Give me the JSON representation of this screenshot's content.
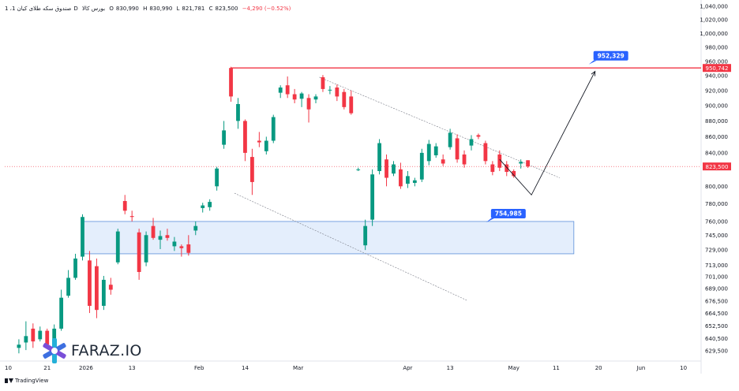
{
  "header": {
    "symbol": "1 ،صندوق سکه طلای کیان",
    "interval": "1D",
    "exchange": "بورس کالا",
    "open_label": "O",
    "open": "830,990",
    "high_label": "H",
    "high": "830,990",
    "low_label": "L",
    "low": "821,781",
    "close_label": "C",
    "close": "823,500",
    "change": "−4,290 (−0.52%)"
  },
  "footer": {
    "brand": "TradingView"
  },
  "logo": {
    "text": "FARAZ.IO"
  },
  "colors": {
    "up": "#089981",
    "down": "#f23645",
    "zone_fill": "#dbe8fb",
    "zone_border": "#5b8fd9",
    "resistance": "#f23645",
    "label_bg": "#2962ff",
    "channel": "#787b86"
  },
  "chart_data": {
    "type": "candlestick",
    "y_axis": {
      "scale": "log",
      "ticks": [
        "1,040,000",
        "1,020,000",
        "1,000,000",
        "980,000",
        "960,000",
        "940,000",
        "920,000",
        "900,000",
        "880,000",
        "860,000",
        "840,000",
        "800,000",
        "780,000",
        "760,000",
        "745,000",
        "729,000",
        "713,000",
        "701,000",
        "689,000",
        "676,500",
        "664,500",
        "652,500",
        "640,500",
        "629,500"
      ],
      "ylim": [
        620000,
        1045000
      ]
    },
    "x_axis": {
      "ticks": [
        {
          "label": "10",
          "day": 0
        },
        {
          "label": "21",
          "day": 11
        },
        {
          "label": "2026",
          "day": 22
        },
        {
          "label": "13",
          "day": 35
        },
        {
          "label": "Feb",
          "day": 54
        },
        {
          "label": "14",
          "day": 67
        },
        {
          "label": "Mar",
          "day": 82
        },
        {
          "label": "Apr",
          "day": 113
        },
        {
          "label": "13",
          "day": 125
        },
        {
          "label": "May",
          "day": 143
        },
        {
          "label": "11",
          "day": 155
        },
        {
          "label": "20",
          "day": 167
        },
        {
          "label": "Jun",
          "day": 179
        },
        {
          "label": "10",
          "day": 191
        }
      ],
      "xlim": [
        -1,
        196
      ]
    },
    "candles": [
      {
        "day": 3,
        "o": 632000,
        "h": 640000,
        "l": 627000,
        "c": 635000
      },
      {
        "day": 5,
        "o": 637000,
        "h": 657000,
        "l": 630000,
        "c": 643000
      },
      {
        "day": 7,
        "o": 650000,
        "h": 655000,
        "l": 632000,
        "c": 638000
      },
      {
        "day": 9,
        "o": 640000,
        "h": 652000,
        "l": 638000,
        "c": 648000
      },
      {
        "day": 11,
        "o": 648000,
        "h": 650000,
        "l": 632000,
        "c": 635000
      },
      {
        "day": 13,
        "o": 636000,
        "h": 654000,
        "l": 634000,
        "c": 650000
      },
      {
        "day": 15,
        "o": 650000,
        "h": 688000,
        "l": 648000,
        "c": 680000
      },
      {
        "day": 17,
        "o": 682000,
        "h": 708000,
        "l": 680000,
        "c": 700000
      },
      {
        "day": 19,
        "o": 700000,
        "h": 725000,
        "l": 698000,
        "c": 720000
      },
      {
        "day": 21,
        "o": 722000,
        "h": 768000,
        "l": 718000,
        "c": 765000
      },
      {
        "day": 23,
        "o": 718000,
        "h": 728000,
        "l": 665000,
        "c": 672000
      },
      {
        "day": 25,
        "o": 712000,
        "h": 720000,
        "l": 660000,
        "c": 668000
      },
      {
        "day": 27,
        "o": 672000,
        "h": 702000,
        "l": 668000,
        "c": 698000
      },
      {
        "day": 29,
        "o": 693000,
        "h": 700000,
        "l": 683000,
        "c": 688000
      },
      {
        "day": 31,
        "o": 716000,
        "h": 752000,
        "l": 714000,
        "c": 749000
      },
      {
        "day": 33,
        "o": 783000,
        "h": 790000,
        "l": 768000,
        "c": 772000
      },
      {
        "day": 35,
        "o": 766000,
        "h": 772000,
        "l": 760000,
        "c": 765000
      },
      {
        "day": 37,
        "o": 748000,
        "h": 752000,
        "l": 698000,
        "c": 706000
      },
      {
        "day": 39,
        "o": 716000,
        "h": 749000,
        "l": 712000,
        "c": 745000
      },
      {
        "day": 41,
        "o": 755000,
        "h": 764000,
        "l": 740000,
        "c": 742000
      },
      {
        "day": 43,
        "o": 740000,
        "h": 750000,
        "l": 730000,
        "c": 744000
      },
      {
        "day": 45,
        "o": 745000,
        "h": 752000,
        "l": 739000,
        "c": 742000
      },
      {
        "day": 47,
        "o": 733000,
        "h": 743000,
        "l": 728000,
        "c": 738000
      },
      {
        "day": 49,
        "o": 733000,
        "h": 735000,
        "l": 722000,
        "c": 731000
      },
      {
        "day": 51,
        "o": 735000,
        "h": 745000,
        "l": 723000,
        "c": 726000
      },
      {
        "day": 53,
        "o": 750000,
        "h": 760000,
        "l": 745000,
        "c": 755000
      },
      {
        "day": 55,
        "o": 775000,
        "h": 781000,
        "l": 770000,
        "c": 778000
      },
      {
        "day": 57,
        "o": 776000,
        "h": 785000,
        "l": 772000,
        "c": 782000
      },
      {
        "day": 59,
        "o": 800000,
        "h": 823000,
        "l": 795000,
        "c": 821000
      },
      {
        "day": 61,
        "o": 850000,
        "h": 880000,
        "l": 845000,
        "c": 868000
      },
      {
        "day": 63,
        "o": 950742,
        "h": 952329,
        "l": 905000,
        "c": 912000
      },
      {
        "day": 65,
        "o": 880000,
        "h": 910000,
        "l": 870000,
        "c": 902000
      },
      {
        "day": 67,
        "o": 880000,
        "h": 882000,
        "l": 830000,
        "c": 840000
      },
      {
        "day": 69,
        "o": 835000,
        "h": 845000,
        "l": 790000,
        "c": 805000
      },
      {
        "day": 71,
        "o": 855000,
        "h": 866000,
        "l": 847000,
        "c": 853000
      },
      {
        "day": 73,
        "o": 842000,
        "h": 860000,
        "l": 838000,
        "c": 855000
      },
      {
        "day": 75,
        "o": 855000,
        "h": 888000,
        "l": 852000,
        "c": 885000
      },
      {
        "day": 77,
        "o": 917000,
        "h": 927000,
        "l": 910000,
        "c": 924000
      },
      {
        "day": 79,
        "o": 927000,
        "h": 939000,
        "l": 910000,
        "c": 915000
      },
      {
        "day": 81,
        "o": 915000,
        "h": 922000,
        "l": 903000,
        "c": 908000
      },
      {
        "day": 83,
        "o": 909000,
        "h": 918000,
        "l": 898000,
        "c": 916000
      },
      {
        "day": 85,
        "o": 910000,
        "h": 915000,
        "l": 878000,
        "c": 895000
      },
      {
        "day": 87,
        "o": 908000,
        "h": 915000,
        "l": 903000,
        "c": 912000
      },
      {
        "day": 89,
        "o": 938000,
        "h": 941000,
        "l": 918000,
        "c": 922000
      },
      {
        "day": 91,
        "o": 920000,
        "h": 926000,
        "l": 915000,
        "c": 921000
      },
      {
        "day": 93,
        "o": 924000,
        "h": 928000,
        "l": 906000,
        "c": 912000
      },
      {
        "day": 95,
        "o": 918000,
        "h": 922000,
        "l": 895000,
        "c": 898000
      },
      {
        "day": 97,
        "o": 912000,
        "h": 920000,
        "l": 888000,
        "c": 890000
      },
      {
        "day": 99,
        "o": 820000,
        "h": 822000,
        "l": 818000,
        "c": 820000
      },
      {
        "day": 101,
        "o": 734000,
        "h": 762000,
        "l": 729000,
        "c": 755000
      },
      {
        "day": 103,
        "o": 762000,
        "h": 820000,
        "l": 755000,
        "c": 814000
      },
      {
        "day": 105,
        "o": 818000,
        "h": 857000,
        "l": 814000,
        "c": 852000
      },
      {
        "day": 107,
        "o": 832000,
        "h": 838000,
        "l": 800000,
        "c": 810000
      },
      {
        "day": 109,
        "o": 815000,
        "h": 830000,
        "l": 812000,
        "c": 826000
      },
      {
        "day": 111,
        "o": 820000,
        "h": 828000,
        "l": 797000,
        "c": 800000
      },
      {
        "day": 113,
        "o": 803000,
        "h": 818000,
        "l": 798000,
        "c": 812000
      },
      {
        "day": 115,
        "o": 804000,
        "h": 810000,
        "l": 800000,
        "c": 807000
      },
      {
        "day": 117,
        "o": 808000,
        "h": 845000,
        "l": 805000,
        "c": 840000
      },
      {
        "day": 119,
        "o": 830000,
        "h": 856000,
        "l": 825000,
        "c": 851000
      },
      {
        "day": 121,
        "o": 837000,
        "h": 852000,
        "l": 834000,
        "c": 848000
      },
      {
        "day": 123,
        "o": 832000,
        "h": 838000,
        "l": 824000,
        "c": 827000
      },
      {
        "day": 125,
        "o": 847000,
        "h": 870000,
        "l": 844000,
        "c": 865000
      },
      {
        "day": 127,
        "o": 858000,
        "h": 863000,
        "l": 828000,
        "c": 832000
      },
      {
        "day": 129,
        "o": 838000,
        "h": 843000,
        "l": 822000,
        "c": 826000
      },
      {
        "day": 131,
        "o": 849000,
        "h": 862000,
        "l": 843000,
        "c": 857000
      },
      {
        "day": 133,
        "o": 862000,
        "h": 864000,
        "l": 857000,
        "c": 860000
      },
      {
        "day": 135,
        "o": 852000,
        "h": 855000,
        "l": 826000,
        "c": 830000
      },
      {
        "day": 137,
        "o": 826000,
        "h": 830000,
        "l": 813000,
        "c": 817000
      },
      {
        "day": 139,
        "o": 838000,
        "h": 843000,
        "l": 818000,
        "c": 822000
      },
      {
        "day": 141,
        "o": 826000,
        "h": 830000,
        "l": 812000,
        "c": 817000
      },
      {
        "day": 143,
        "o": 818000,
        "h": 820000,
        "l": 810000,
        "c": 812000
      },
      {
        "day": 145,
        "o": 827000,
        "h": 832000,
        "l": 821000,
        "c": 829000
      },
      {
        "day": 147,
        "o": 830990,
        "h": 830990,
        "l": 821781,
        "c": 823500
      }
    ],
    "zone": {
      "day_start": 21,
      "day_end": 160,
      "top": 760000,
      "bottom": 725000
    },
    "resistance": {
      "day_start": 63,
      "day_end": 195,
      "value": 950742
    },
    "channel_upper": [
      {
        "day": 88,
        "v": 938000
      },
      {
        "day": 156,
        "v": 810000
      }
    ],
    "channel_lower": [
      {
        "day": 64,
        "v": 792000
      },
      {
        "day": 130,
        "v": 677000
      }
    ],
    "projection": [
      {
        "day": 139,
        "v": 832000
      },
      {
        "day": 148,
        "v": 790000
      },
      {
        "day": 166,
        "v": 946000
      }
    ],
    "current_price": {
      "value": 823500,
      "label": "823,500"
    },
    "resistance_label": "950,742",
    "annotations": [
      {
        "text": "952,329",
        "day": 166,
        "v": 952329
      },
      {
        "text": "754,985",
        "day": 137,
        "v": 754985
      }
    ]
  }
}
